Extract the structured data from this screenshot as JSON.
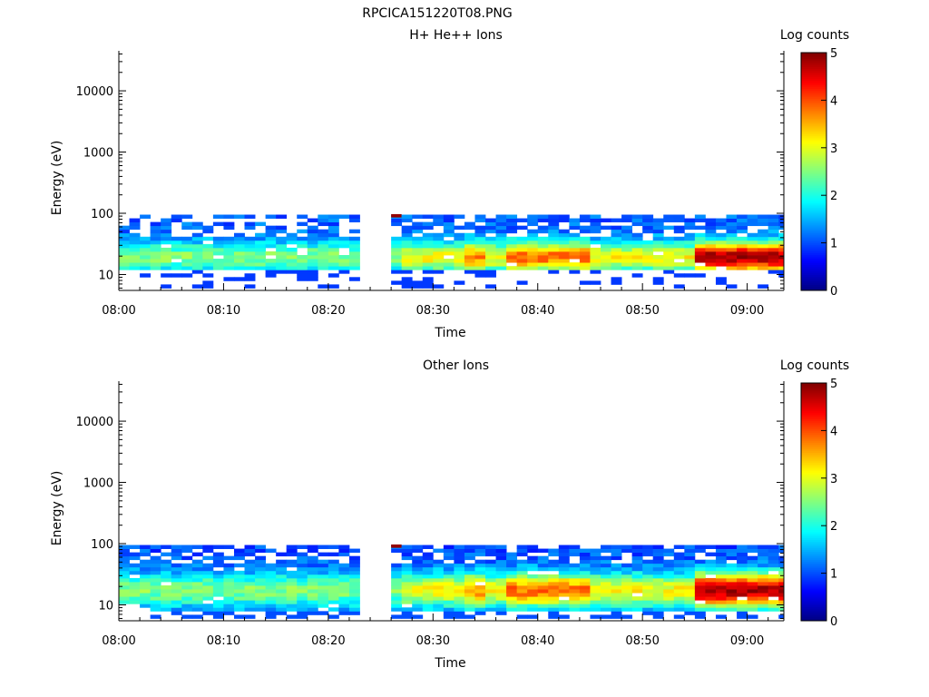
{
  "filename": "RPCICA151220T08.PNG",
  "colormap": {
    "stops": [
      "#000080",
      "#0000ff",
      "#0080ff",
      "#00ffff",
      "#80ff80",
      "#ffff00",
      "#ff8000",
      "#ff0000",
      "#800000"
    ]
  },
  "chart_data": [
    {
      "type": "heatmap",
      "title": "H+ He++ Ions",
      "xlabel": "Time",
      "ylabel": "Energy (eV)",
      "colorbar_label": "Log counts",
      "x_ticks": [
        "08:00",
        "08:10",
        "08:20",
        "08:30",
        "08:40",
        "08:50",
        "09:00"
      ],
      "y_ticks": [
        "10",
        "100",
        "1000",
        "10000"
      ],
      "y_scale": "log",
      "y_range": [
        5.5,
        45000
      ],
      "x_range": [
        "08:00",
        "09:03.5"
      ],
      "colorbar_ticks": [
        "0",
        "1",
        "2",
        "3",
        "4",
        "5"
      ],
      "colorbar_range": [
        0,
        5
      ],
      "data_gap": [
        "08:22.5",
        "08:25.5"
      ],
      "data_energy_range": [
        6,
        95
      ],
      "profile": "hplus"
    },
    {
      "type": "heatmap",
      "title": "Other Ions",
      "xlabel": "Time",
      "ylabel": "Energy (eV)",
      "colorbar_label": "Log counts",
      "x_ticks": [
        "08:00",
        "08:10",
        "08:20",
        "08:30",
        "08:40",
        "08:50",
        "09:00"
      ],
      "y_ticks": [
        "10",
        "100",
        "1000",
        "10000"
      ],
      "y_scale": "log",
      "y_range": [
        5.5,
        45000
      ],
      "x_range": [
        "08:00",
        "09:03.5"
      ],
      "colorbar_ticks": [
        "0",
        "1",
        "2",
        "3",
        "4",
        "5"
      ],
      "colorbar_range": [
        0,
        5
      ],
      "data_gap": [
        "08:22.5",
        "08:25.5"
      ],
      "data_energy_range": [
        6,
        95
      ],
      "profile": "other"
    }
  ]
}
